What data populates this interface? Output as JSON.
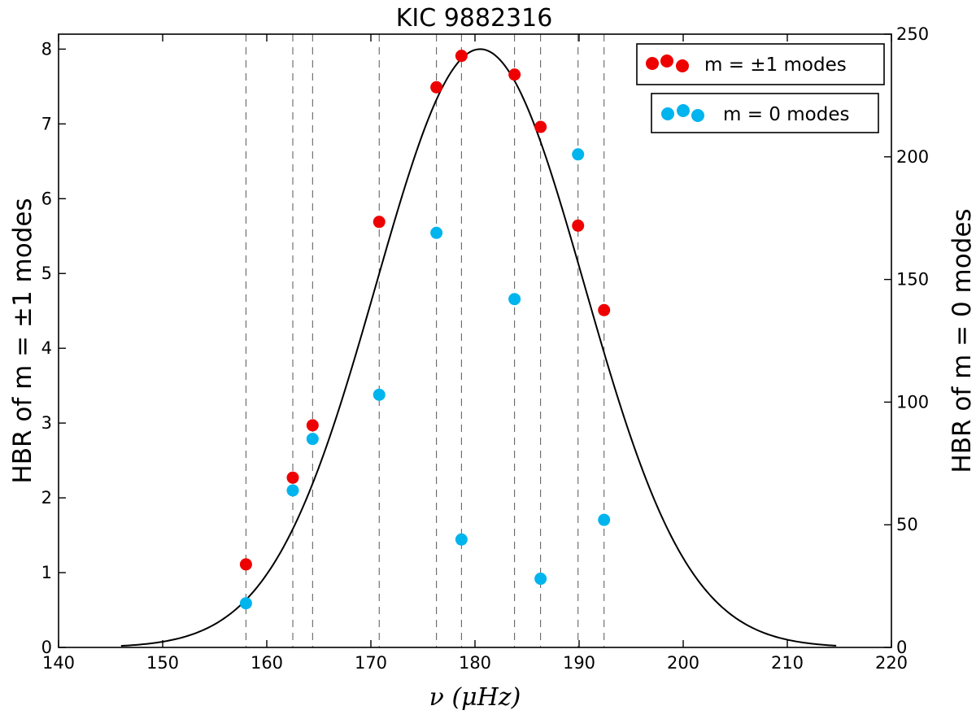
{
  "chart_data": {
    "type": "scatter",
    "title": "KIC 9882316",
    "xlabel": "ν (μHz)",
    "ylabel_left": "HBR of m = ±1 modes",
    "ylabel_right": "HBR of m = 0 modes",
    "xlim": [
      140,
      220
    ],
    "ylim_left": [
      0,
      8.2
    ],
    "ylim_right": [
      0,
      250
    ],
    "x_ticks": [
      "140",
      "150",
      "160",
      "170",
      "180",
      "190",
      "200",
      "210",
      "220"
    ],
    "y_ticks_left": [
      "0",
      "1",
      "2",
      "3",
      "4",
      "5",
      "6",
      "7",
      "8"
    ],
    "y_ticks_right": [
      "0",
      "50",
      "100",
      "150",
      "200",
      "250"
    ],
    "vertical_dashed_lines_x": [
      158.0,
      162.5,
      164.4,
      170.8,
      176.3,
      178.7,
      183.8,
      186.3,
      189.9,
      192.4
    ],
    "fit_curve": {
      "type": "gaussian",
      "amplitude": 8.0,
      "center": 180.5,
      "sigma": 10.0,
      "x_range": [
        146,
        214.7
      ],
      "color": "#000000"
    },
    "series": [
      {
        "name": "m = ±1 modes",
        "axis": "left",
        "color": "#ee0000",
        "x": [
          158.0,
          162.5,
          164.4,
          170.8,
          176.3,
          178.7,
          183.8,
          186.3,
          189.9,
          192.4
        ],
        "y": [
          1.11,
          2.27,
          2.97,
          5.69,
          7.49,
          7.91,
          7.66,
          6.96,
          5.64,
          4.51
        ]
      },
      {
        "name": "m = 0 modes",
        "axis": "right",
        "color": "#00b4ee",
        "x": [
          158.0,
          162.5,
          164.4,
          170.8,
          176.3,
          178.7,
          183.8,
          186.3,
          189.9,
          192.4
        ],
        "y": [
          18,
          64,
          85,
          103,
          169,
          44,
          142,
          28,
          201,
          52
        ]
      }
    ],
    "legend": [
      {
        "label": "m =  ±1 modes",
        "color": "#ee0000",
        "position": "top-right"
      },
      {
        "label": "m = 0 modes",
        "color": "#00b4ee",
        "position": "top-right"
      }
    ]
  }
}
